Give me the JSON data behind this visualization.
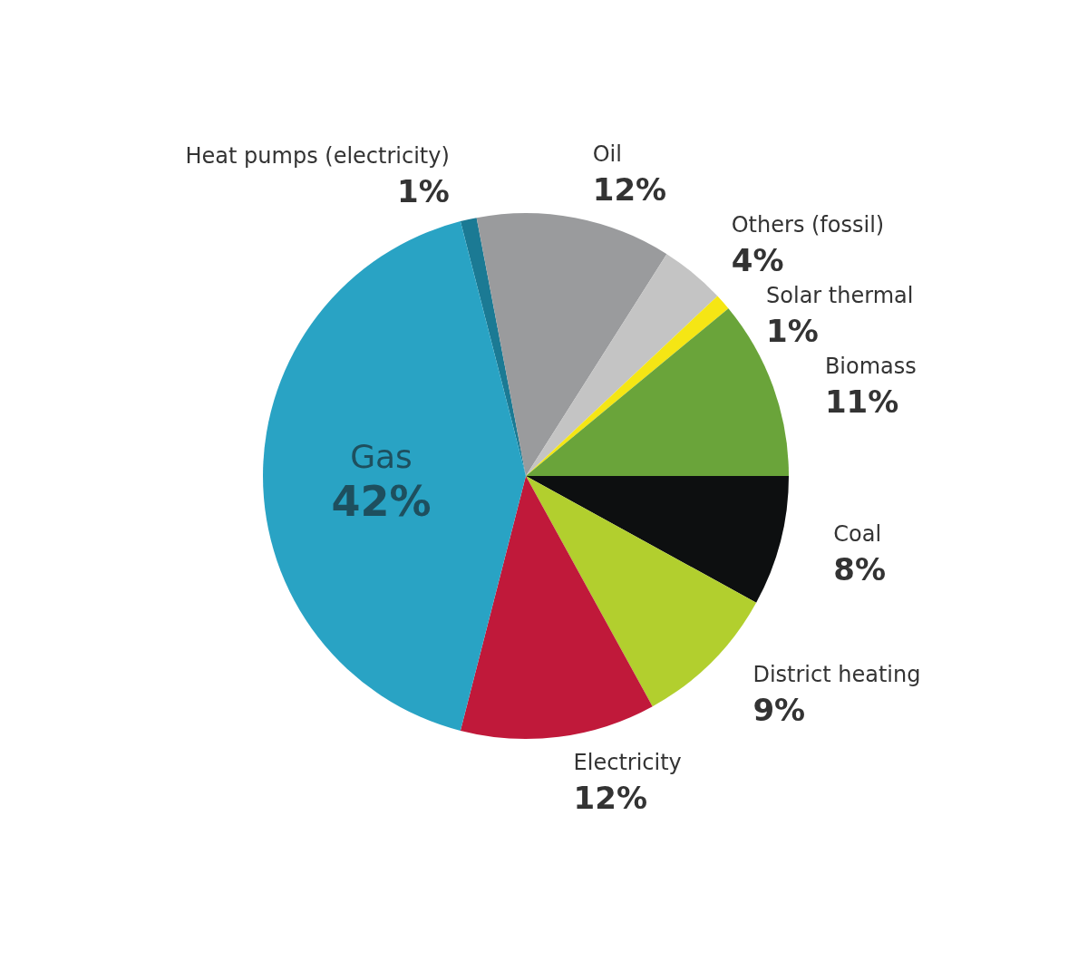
{
  "chart_data": {
    "type": "pie",
    "categories": [
      "Heat pumps (electricity)",
      "Oil",
      "Others (fossil)",
      "Solar thermal",
      "Biomass",
      "Coal",
      "District heating",
      "Electricity",
      "Gas"
    ],
    "values": [
      1,
      12,
      4,
      1,
      11,
      8,
      9,
      12,
      42
    ],
    "value_labels": [
      "1%",
      "12%",
      "4%",
      "1%",
      "11%",
      "8%",
      "9%",
      "12%",
      "42%"
    ],
    "colors": [
      "#1b7a94",
      "#9a9b9d",
      "#c4c4c4",
      "#f5e614",
      "#6aa43a",
      "#0d0f10",
      "#b2cf2e",
      "#c0193a",
      "#29a3c4"
    ]
  }
}
